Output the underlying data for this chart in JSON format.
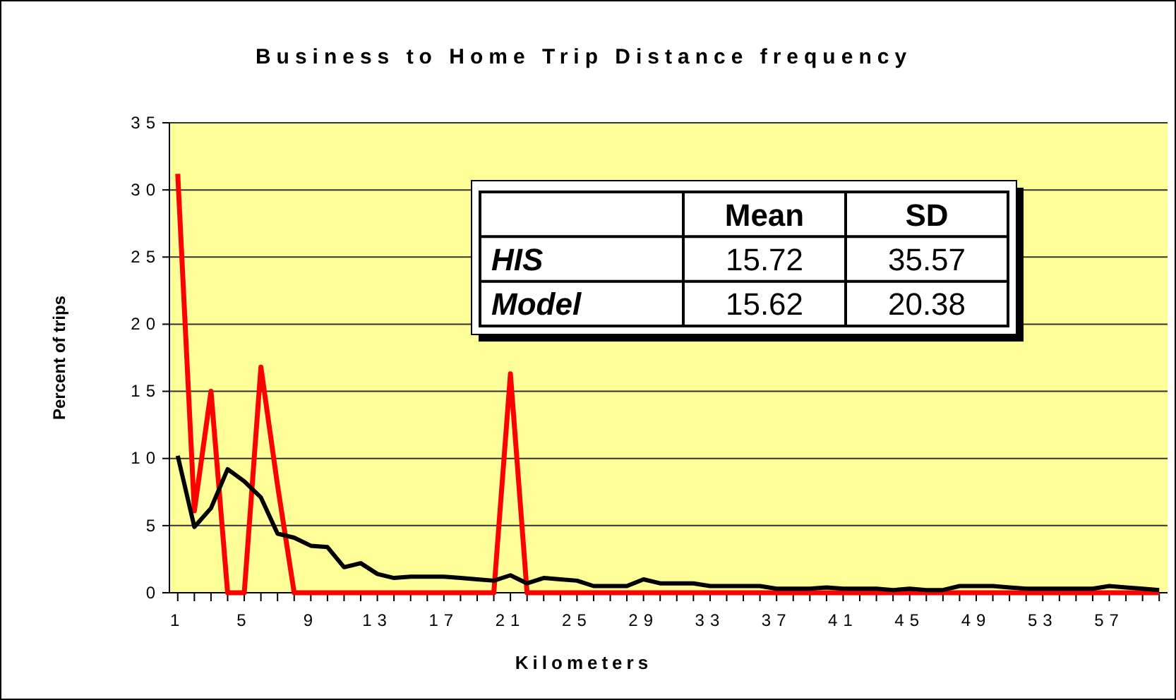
{
  "chart_data": {
    "type": "line",
    "title": "Business to Home Trip Distance frequency",
    "xlabel": "Kilometers",
    "ylabel": "Percent of trips",
    "categories": [
      "1",
      null,
      null,
      null,
      "5",
      null,
      null,
      null,
      "9",
      null,
      null,
      null,
      "13",
      null,
      null,
      null,
      "17",
      null,
      null,
      null,
      "21",
      null,
      null,
      null,
      "25",
      null,
      null,
      null,
      "29",
      null,
      null,
      null,
      "33",
      null,
      null,
      null,
      "37",
      null,
      null,
      null,
      "41",
      null,
      null,
      null,
      "45",
      null,
      null,
      null,
      "49",
      null,
      null,
      null,
      "53",
      null,
      null,
      null,
      "57",
      null,
      null,
      null
    ],
    "series": [
      {
        "color": "#ff0000",
        "values": [
          31.2,
          6.1,
          15,
          0,
          0,
          16.8,
          8,
          0,
          0,
          0,
          0,
          0,
          0,
          0,
          0,
          0,
          0,
          0,
          0,
          0,
          16.3,
          0,
          0,
          0,
          0,
          0,
          0,
          0,
          0,
          0,
          0,
          0,
          0,
          0,
          0,
          0,
          0,
          0,
          0,
          0,
          0,
          0,
          0,
          0,
          0,
          0,
          0,
          0,
          0,
          0,
          0,
          0,
          0,
          0,
          0,
          0,
          0,
          0,
          0,
          0
        ]
      },
      {
        "color": "#000000",
        "values": [
          10.2,
          4.9,
          6.3,
          9.2,
          8.3,
          7.1,
          4.4,
          4.1,
          3.5,
          3.4,
          1.9,
          2.2,
          1.4,
          1.1,
          1.2,
          1.2,
          1.2,
          1.1,
          1.0,
          0.9,
          1.3,
          0.7,
          1.1,
          1.0,
          0.9,
          0.5,
          0.5,
          0.5,
          1.0,
          0.7,
          0.7,
          0.7,
          0.5,
          0.5,
          0.5,
          0.5,
          0.3,
          0.3,
          0.3,
          0.4,
          0.3,
          0.3,
          0.3,
          0.2,
          0.3,
          0.2,
          0.2,
          0.5,
          0.5,
          0.5,
          0.4,
          0.3,
          0.3,
          0.3,
          0.3,
          0.3,
          0.5,
          0.4,
          0.3,
          0.2
        ]
      }
    ],
    "ylim": [
      0,
      35
    ],
    "yticks": [
      0,
      5,
      10,
      15,
      20,
      25,
      30,
      35
    ],
    "grid": "y",
    "line_style": "solid",
    "marker": "none",
    "annotations": [
      "Mean",
      "SD",
      "HIS",
      "15.72",
      "35.57",
      "Model",
      "15.62",
      "20.38"
    ]
  }
}
